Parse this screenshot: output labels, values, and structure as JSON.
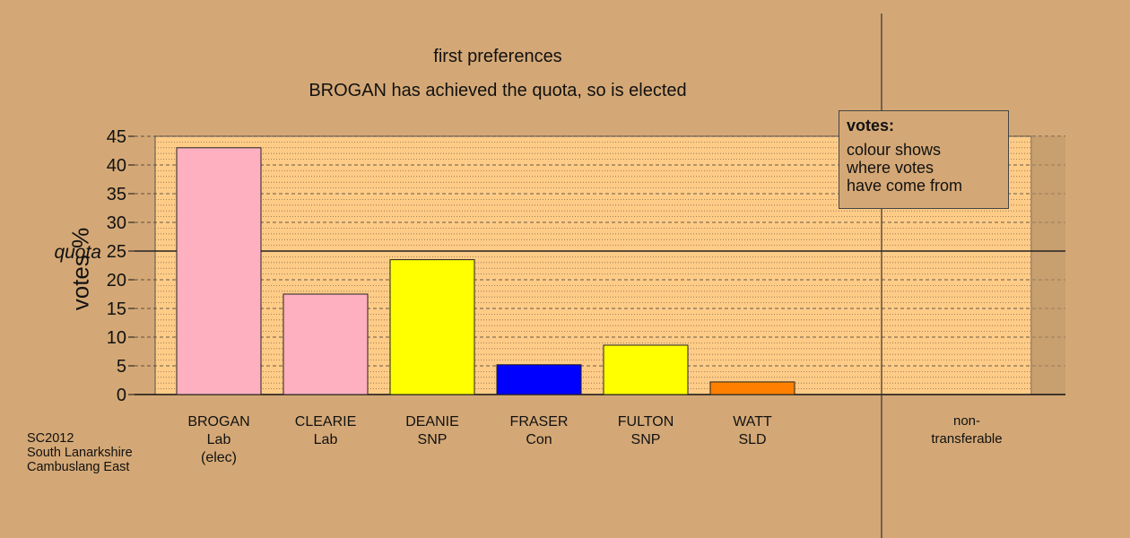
{
  "titles": {
    "line1": "first preferences",
    "line2": "BROGAN has achieved the quota, so is elected"
  },
  "source": [
    "SC2012",
    "South Lanarkshire",
    "Cambuslang East"
  ],
  "legend": {
    "title": "votes:",
    "lines": [
      "colour shows",
      "where votes",
      "have come from"
    ]
  },
  "chart_data": {
    "type": "bar",
    "ylabel": "votes %",
    "xlabel": "",
    "ylim": [
      0,
      45
    ],
    "yticks": [
      0,
      5,
      10,
      15,
      20,
      25,
      30,
      35,
      40,
      45
    ],
    "quota": {
      "label": "quota",
      "value": 25
    },
    "categories": [
      {
        "lines": [
          "BROGAN",
          "Lab",
          "(elec)"
        ],
        "value": 43.0,
        "color": "#ffb0c0"
      },
      {
        "lines": [
          "CLEARIE",
          "Lab"
        ],
        "value": 17.5,
        "color": "#ffb0c0"
      },
      {
        "lines": [
          "DEANIE",
          "SNP"
        ],
        "value": 23.5,
        "color": "#ffff00"
      },
      {
        "lines": [
          "FRASER",
          "Con"
        ],
        "value": 5.2,
        "color": "#0000ff"
      },
      {
        "lines": [
          "FULTON",
          "SNP"
        ],
        "value": 8.6,
        "color": "#ffff00"
      },
      {
        "lines": [
          "WATT",
          "SLD"
        ],
        "value": 2.2,
        "color": "#ff8000"
      }
    ],
    "nontransferable": {
      "lines": [
        "non-",
        "transferable"
      ],
      "value": 0
    },
    "grid": "dashed and dotted horizontal",
    "colors": {
      "plot_background": "#ffcc88",
      "page_background": "#d4a876"
    }
  }
}
